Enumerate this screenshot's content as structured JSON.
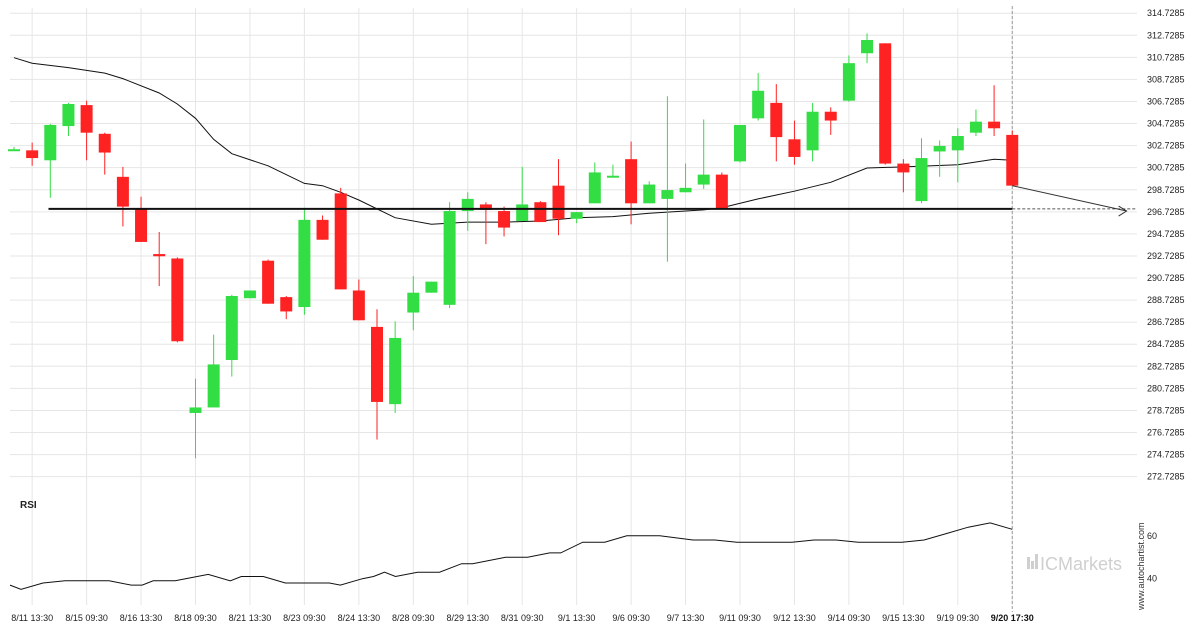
{
  "chart_data": {
    "type": "candlestick",
    "price_axis": {
      "ticks": [
        "314.7285",
        "312.7285",
        "310.7285",
        "308.7285",
        "306.7285",
        "304.7285",
        "302.7285",
        "300.7285",
        "298.7285",
        "296.7285",
        "294.7285",
        "292.7285",
        "290.7285",
        "288.7285",
        "286.7285",
        "284.7285",
        "282.7285",
        "280.7285",
        "278.7285",
        "276.7285",
        "274.7285",
        "272.7285"
      ],
      "range": [
        271.7,
        315.2
      ]
    },
    "x_labels": [
      {
        "label": "8/11 13:30",
        "bar": 1
      },
      {
        "label": "8/15 09:30",
        "bar": 4
      },
      {
        "label": "8/16 13:30",
        "bar": 7
      },
      {
        "label": "8/18 09:30",
        "bar": 10
      },
      {
        "label": "8/21 13:30",
        "bar": 13
      },
      {
        "label": "8/23 09:30",
        "bar": 16
      },
      {
        "label": "8/24 13:30",
        "bar": 19
      },
      {
        "label": "8/28 09:30",
        "bar": 22
      },
      {
        "label": "8/29 13:30",
        "bar": 25
      },
      {
        "label": "8/31 09:30",
        "bar": 28
      },
      {
        "label": "9/1 13:30",
        "bar": 31
      },
      {
        "label": "9/6 09:30",
        "bar": 34
      },
      {
        "label": "9/7 13:30",
        "bar": 37
      },
      {
        "label": "9/11 09:30",
        "bar": 40
      },
      {
        "label": "9/12 13:30",
        "bar": 43
      },
      {
        "label": "9/14 09:30",
        "bar": 46
      },
      {
        "label": "9/15 13:30",
        "bar": 49
      },
      {
        "label": "9/19 09:30",
        "bar": 52
      },
      {
        "label": "9/20 17:30",
        "bar": 55,
        "current": true
      }
    ],
    "candles": [
      {
        "o": 302.4,
        "h": 302.6,
        "l": 302.3,
        "c": 302.4
      },
      {
        "o": 302.3,
        "h": 303.0,
        "l": 300.9,
        "c": 301.6
      },
      {
        "o": 301.4,
        "h": 304.7,
        "l": 298.0,
        "c": 304.6
      },
      {
        "o": 304.5,
        "h": 306.6,
        "l": 303.6,
        "c": 306.5
      },
      {
        "o": 306.4,
        "h": 306.8,
        "l": 301.4,
        "c": 303.9
      },
      {
        "o": 303.8,
        "h": 303.9,
        "l": 300.1,
        "c": 302.1
      },
      {
        "o": 299.9,
        "h": 300.8,
        "l": 295.4,
        "c": 297.2
      },
      {
        "o": 297.0,
        "h": 298.1,
        "l": 294.0,
        "c": 294.0
      },
      {
        "o": 292.9,
        "h": 294.9,
        "l": 290.0,
        "c": 292.7
      },
      {
        "o": 292.5,
        "h": 292.6,
        "l": 284.9,
        "c": 285.0
      },
      {
        "o": 278.5,
        "h": 281.6,
        "l": 274.4,
        "c": 279.0
      },
      {
        "o": 279.0,
        "h": 285.6,
        "l": 279.0,
        "c": 282.9
      },
      {
        "o": 283.3,
        "h": 289.2,
        "l": 281.8,
        "c": 289.1
      },
      {
        "o": 288.9,
        "h": 289.6,
        "l": 288.9,
        "c": 289.6
      },
      {
        "o": 292.3,
        "h": 292.4,
        "l": 288.4,
        "c": 288.4
      },
      {
        "o": 289.0,
        "h": 289.1,
        "l": 287.0,
        "c": 287.7
      },
      {
        "o": 288.1,
        "h": 297.1,
        "l": 287.4,
        "c": 296.0
      },
      {
        "o": 296.0,
        "h": 296.4,
        "l": 294.2,
        "c": 294.2
      },
      {
        "o": 298.4,
        "h": 298.9,
        "l": 289.7,
        "c": 289.7
      },
      {
        "o": 289.6,
        "h": 290.6,
        "l": 286.9,
        "c": 286.9
      },
      {
        "o": 286.3,
        "h": 287.9,
        "l": 276.1,
        "c": 279.5
      },
      {
        "o": 279.3,
        "h": 286.8,
        "l": 278.5,
        "c": 285.3
      },
      {
        "o": 287.6,
        "h": 290.9,
        "l": 286.0,
        "c": 289.4
      },
      {
        "o": 289.4,
        "h": 290.4,
        "l": 289.4,
        "c": 290.4
      },
      {
        "o": 288.3,
        "h": 297.6,
        "l": 288.0,
        "c": 296.8
      },
      {
        "o": 296.8,
        "h": 298.5,
        "l": 295.0,
        "c": 297.9
      },
      {
        "o": 297.4,
        "h": 297.6,
        "l": 293.8,
        "c": 296.9
      },
      {
        "o": 296.8,
        "h": 297.2,
        "l": 294.5,
        "c": 295.3
      },
      {
        "o": 295.9,
        "h": 300.8,
        "l": 295.9,
        "c": 297.4
      },
      {
        "o": 297.6,
        "h": 297.7,
        "l": 295.8,
        "c": 295.8
      },
      {
        "o": 299.1,
        "h": 301.5,
        "l": 294.6,
        "c": 296.1
      },
      {
        "o": 296.1,
        "h": 296.7,
        "l": 295.7,
        "c": 296.7
      },
      {
        "o": 297.5,
        "h": 301.2,
        "l": 297.5,
        "c": 300.3
      },
      {
        "o": 300.0,
        "h": 301.0,
        "l": 299.9,
        "c": 300.0
      },
      {
        "o": 301.5,
        "h": 303.1,
        "l": 295.6,
        "c": 297.5
      },
      {
        "o": 297.5,
        "h": 299.5,
        "l": 297.5,
        "c": 299.2
      },
      {
        "o": 297.9,
        "h": 307.2,
        "l": 292.2,
        "c": 298.7
      },
      {
        "o": 298.5,
        "h": 301.1,
        "l": 298.5,
        "c": 298.9
      },
      {
        "o": 299.2,
        "h": 305.1,
        "l": 298.8,
        "c": 300.1
      },
      {
        "o": 300.1,
        "h": 300.3,
        "l": 297.0,
        "c": 297.0
      },
      {
        "o": 301.3,
        "h": 304.6,
        "l": 301.2,
        "c": 304.6
      },
      {
        "o": 305.2,
        "h": 309.3,
        "l": 305.0,
        "c": 307.7
      },
      {
        "o": 306.6,
        "h": 308.3,
        "l": 301.3,
        "c": 303.5
      },
      {
        "o": 303.3,
        "h": 305.0,
        "l": 301.0,
        "c": 301.7
      },
      {
        "o": 302.3,
        "h": 306.6,
        "l": 301.3,
        "c": 305.8
      },
      {
        "o": 305.8,
        "h": 306.2,
        "l": 303.7,
        "c": 305.0
      },
      {
        "o": 306.8,
        "h": 310.9,
        "l": 306.7,
        "c": 310.2
      },
      {
        "o": 311.1,
        "h": 312.9,
        "l": 310.2,
        "c": 312.3
      },
      {
        "o": 312.0,
        "h": 312.0,
        "l": 301.0,
        "c": 301.1
      },
      {
        "o": 301.1,
        "h": 301.5,
        "l": 298.5,
        "c": 300.3
      },
      {
        "o": 297.7,
        "h": 303.4,
        "l": 297.5,
        "c": 301.6
      },
      {
        "o": 302.2,
        "h": 303.2,
        "l": 299.9,
        "c": 302.7
      },
      {
        "o": 302.3,
        "h": 304.3,
        "l": 299.4,
        "c": 303.6
      },
      {
        "o": 303.9,
        "h": 306.0,
        "l": 303.6,
        "c": 304.9
      },
      {
        "o": 304.9,
        "h": 308.2,
        "l": 303.6,
        "c": 304.3
      },
      {
        "o": 303.7,
        "h": 304.1,
        "l": 299.1,
        "c": 299.1
      }
    ],
    "moving_average": [
      [
        0,
        310.7
      ],
      [
        1,
        310.2
      ],
      [
        3,
        309.8
      ],
      [
        5,
        309.3
      ],
      [
        6,
        308.8
      ],
      [
        8,
        307.5
      ],
      [
        9,
        306.5
      ],
      [
        10,
        305.2
      ],
      [
        11,
        303.3
      ],
      [
        12,
        302.0
      ],
      [
        14,
        300.9
      ],
      [
        16,
        299.3
      ],
      [
        17,
        299.1
      ],
      [
        18,
        298.5
      ],
      [
        19,
        297.8
      ],
      [
        21,
        296.2
      ],
      [
        23,
        295.6
      ],
      [
        25,
        295.8
      ],
      [
        27,
        295.8
      ],
      [
        29,
        295.9
      ],
      [
        31,
        296.2
      ],
      [
        33,
        296.3
      ],
      [
        35,
        296.6
      ],
      [
        37,
        296.8
      ],
      [
        38,
        296.9
      ],
      [
        39,
        297.1
      ],
      [
        41,
        297.9
      ],
      [
        43,
        298.6
      ],
      [
        45,
        299.4
      ],
      [
        47,
        300.7
      ],
      [
        49,
        300.8
      ],
      [
        52,
        301.0
      ],
      [
        54,
        301.5
      ],
      [
        55,
        301.4
      ]
    ],
    "projection": [
      [
        55,
        299.1
      ],
      [
        61.3,
        296.8
      ]
    ],
    "support_level": 297.0,
    "support_from_bar": 1.9,
    "rsi": {
      "label": "RSI",
      "ticks": [
        "60",
        "40"
      ],
      "range": [
        31,
        72
      ],
      "values": [
        [
          0,
          37
        ],
        [
          1,
          35
        ],
        [
          3,
          38
        ],
        [
          5,
          39
        ],
        [
          7,
          39
        ],
        [
          9,
          39
        ],
        [
          11,
          37
        ],
        [
          12,
          37
        ],
        [
          13,
          39
        ],
        [
          15,
          39
        ],
        [
          17,
          41
        ],
        [
          18,
          42
        ],
        [
          20,
          39
        ],
        [
          21,
          41
        ],
        [
          23,
          41
        ],
        [
          25,
          38
        ],
        [
          27,
          38
        ],
        [
          29,
          38
        ],
        [
          30,
          37
        ],
        [
          32,
          40
        ],
        [
          33,
          41
        ],
        [
          34,
          43
        ],
        [
          35,
          41
        ],
        [
          37,
          43
        ],
        [
          39,
          43
        ],
        [
          41,
          47
        ],
        [
          42,
          47
        ],
        [
          45,
          50
        ],
        [
          47,
          50
        ],
        [
          49,
          52
        ],
        [
          50,
          52
        ],
        [
          52,
          57
        ],
        [
          54,
          57
        ],
        [
          56,
          60
        ],
        [
          59,
          60
        ],
        [
          62,
          58
        ],
        [
          64,
          58
        ],
        [
          66,
          57
        ],
        [
          69,
          57
        ],
        [
          71,
          57
        ],
        [
          73,
          58
        ],
        [
          75,
          58
        ],
        [
          77,
          57
        ],
        [
          79,
          57
        ],
        [
          81,
          57
        ],
        [
          83,
          58
        ],
        [
          85,
          61
        ],
        [
          87,
          64
        ],
        [
          89,
          66
        ],
        [
          91,
          63
        ]
      ]
    },
    "colors": {
      "up": "#33dd44",
      "down": "#ff2222",
      "line": "#111111",
      "grid": "#e6e6e6"
    }
  },
  "watermark": "www.autochartist.com",
  "brand": {
    "icon_name": "ic-markets-logo-icon",
    "text": "ICMarkets"
  }
}
